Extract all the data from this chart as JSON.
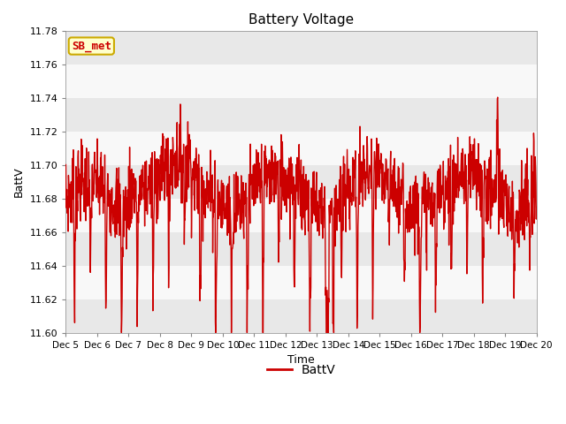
{
  "title": "Battery Voltage",
  "xlabel": "Time",
  "ylabel": "BattV",
  "ylim": [
    11.6,
    11.78
  ],
  "yticks": [
    11.6,
    11.62,
    11.64,
    11.66,
    11.68,
    11.7,
    11.72,
    11.74,
    11.76,
    11.78
  ],
  "xtick_labels": [
    "Dec 5",
    "Dec 6",
    "Dec 7",
    "Dec 8",
    "Dec 9",
    "Dec 10",
    "Dec 11",
    "Dec 12",
    "Dec 13",
    "Dec 14",
    "Dec 15",
    "Dec 16",
    "Dec 17",
    "Dec 18",
    "Dec 19",
    "Dec 20"
  ],
  "line_color": "#cc0000",
  "line_width": 1.0,
  "legend_label": "BattV",
  "sb_label": "SB_met",
  "sb_label_color": "#cc0000",
  "sb_bg_color": "#ffffcc",
  "sb_border_color": "#ccaa00",
  "band_colors_even": "#e8e8e8",
  "band_colors_odd": "#f8f8f8",
  "band_edges": [
    11.6,
    11.62,
    11.64,
    11.66,
    11.68,
    11.7,
    11.72,
    11.74,
    11.76,
    11.78
  ],
  "plot_bg_color": "#ffffff",
  "figsize": [
    6.4,
    4.8
  ],
  "dpi": 100
}
